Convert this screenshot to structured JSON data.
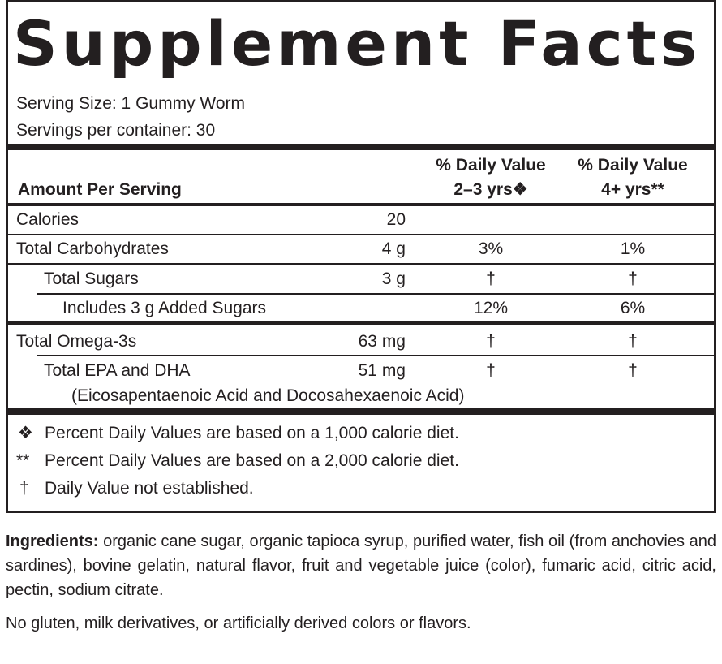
{
  "header": {
    "title": "Supplement Facts",
    "serving_size": "Serving Size: 1 Gummy Worm",
    "servings_per_container": "Servings per container: 30"
  },
  "table": {
    "columns": {
      "amount": "Amount Per Serving",
      "dv_2_3": [
        "% Daily Value",
        "2–3 yrs❖"
      ],
      "dv_4plus": [
        "% Daily Value",
        "4+ yrs**"
      ]
    },
    "rows": [
      {
        "name": "Calories",
        "amount": "20"
      },
      {
        "name": "Total Carbohydrates",
        "amount": "4 g",
        "dv_2_3": "3%",
        "dv_4plus": "1%"
      },
      {
        "name": "Total Sugars",
        "amount": "3 g",
        "dv_2_3": "†",
        "dv_4plus": "†"
      },
      {
        "name": "Includes 3 g Added Sugars",
        "dv_2_3": "12%",
        "dv_4plus": "6%"
      },
      {
        "name": "Total Omega-3s",
        "amount": "63 mg",
        "dv_2_3": "†",
        "dv_4plus": "†"
      },
      {
        "name": "Total EPA and DHA",
        "amount": "51 mg",
        "dv_2_3": "†",
        "dv_4plus": "†",
        "note": "(Eicosapentaenoic Acid and Docosahexaenoic Acid)"
      }
    ]
  },
  "footnotes": [
    {
      "symbol": "❖",
      "text": "Percent Daily Values are based on a 1,000 calorie diet."
    },
    {
      "symbol": "**",
      "text": "Percent Daily Values are based on a 2,000 calorie diet."
    },
    {
      "symbol": "†",
      "text": "Daily Value not established."
    }
  ],
  "ingredients": {
    "label": "Ingredients:",
    "text": "organic cane sugar, organic tapioca syrup, purified water, fish oil (from anchovies and sardines), bovine gelatin, natural flavor, fruit and vegetable juice (color), fumaric acid, citric acid, pectin, sodium citrate."
  },
  "note": "No gluten, milk derivatives, or artificially derived colors or flavors."
}
